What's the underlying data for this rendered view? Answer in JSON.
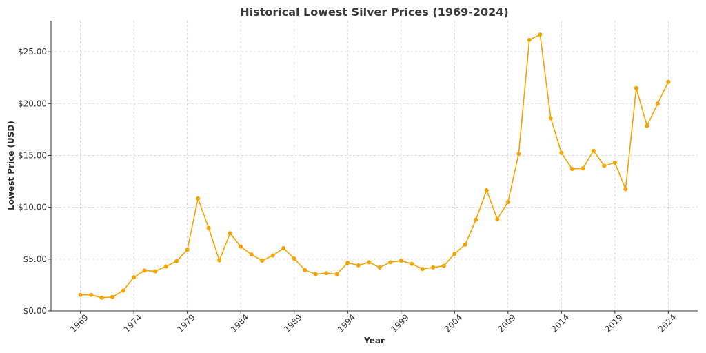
{
  "chart_data": {
    "type": "line",
    "title": "Historical Lowest Silver Prices (1969-2024)",
    "xlabel": "Year",
    "ylabel": "Lowest Price (USD)",
    "xlim": [
      1966.25,
      2026.75
    ],
    "ylim": [
      0,
      28
    ],
    "x_ticks": [
      1969,
      1974,
      1979,
      1984,
      1989,
      1994,
      1999,
      2004,
      2009,
      2014,
      2019,
      2024
    ],
    "y_ticks": [
      0,
      5,
      10,
      15,
      20,
      25
    ],
    "y_tick_labels": [
      "$0.00",
      "$5.00",
      "$10.00",
      "$15.00",
      "$20.00",
      "$25.00"
    ],
    "grid": true,
    "series": [
      {
        "name": "Lowest Price",
        "color": "#f5a300",
        "x": [
          1969,
          1970,
          1971,
          1972,
          1973,
          1974,
          1975,
          1976,
          1977,
          1978,
          1979,
          1980,
          1981,
          1982,
          1983,
          1984,
          1985,
          1986,
          1987,
          1988,
          1989,
          1990,
          1991,
          1992,
          1993,
          1994,
          1995,
          1996,
          1997,
          1998,
          1999,
          2000,
          2001,
          2002,
          2003,
          2004,
          2005,
          2006,
          2007,
          2008,
          2009,
          2010,
          2011,
          2012,
          2013,
          2014,
          2015,
          2016,
          2017,
          2018,
          2019,
          2020,
          2021,
          2022,
          2023,
          2024
        ],
        "values": [
          1.55,
          1.55,
          1.28,
          1.35,
          1.95,
          3.25,
          3.9,
          3.82,
          4.3,
          4.8,
          5.9,
          10.85,
          8.0,
          4.88,
          7.5,
          6.2,
          5.45,
          4.85,
          5.35,
          6.05,
          5.05,
          3.95,
          3.55,
          3.65,
          3.55,
          4.65,
          4.4,
          4.7,
          4.2,
          4.7,
          4.85,
          4.55,
          4.05,
          4.2,
          4.35,
          5.5,
          6.4,
          8.8,
          11.65,
          8.85,
          10.5,
          15.15,
          26.15,
          26.65,
          18.6,
          15.25,
          13.7,
          13.75,
          15.45,
          14.0,
          14.3,
          11.75,
          21.5,
          17.85,
          20.0,
          22.1
        ]
      }
    ]
  }
}
